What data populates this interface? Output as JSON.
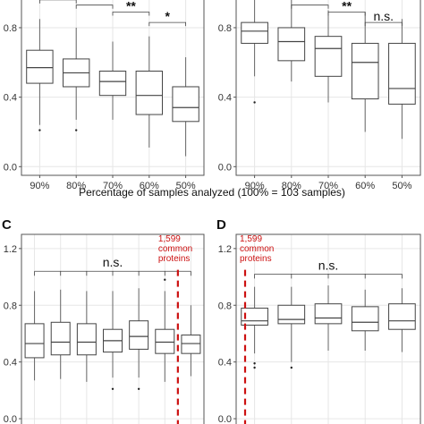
{
  "shared_xlabel": "Percentage of samples analyzed (100% = 103 samples)",
  "colors": {
    "box_stroke": "#444444",
    "whisker": "#666666",
    "grid": "#e6e6e6",
    "frame": "#555555",
    "annotation": "#cc1111"
  },
  "chart_data": [
    {
      "panel_id": "A",
      "letter": "",
      "type": "box",
      "categories": [
        "90%",
        "80%",
        "70%",
        "60%",
        "50%"
      ],
      "ylim": [
        -0.05,
        0.98
      ],
      "yticks": [
        "0.0",
        "0.4",
        "0.8"
      ],
      "grid": true,
      "boxes": [
        {
          "low": 0.24,
          "q1": 0.48,
          "median": 0.57,
          "q3": 0.67,
          "high": 0.85,
          "outliers": [
            0.21
          ]
        },
        {
          "low": 0.27,
          "q1": 0.46,
          "median": 0.54,
          "q3": 0.62,
          "high": 0.8,
          "outliers": [
            0.21
          ]
        },
        {
          "low": 0.27,
          "q1": 0.41,
          "median": 0.49,
          "q3": 0.55,
          "high": 0.72,
          "outliers": []
        },
        {
          "low": 0.11,
          "q1": 0.3,
          "median": 0.41,
          "q3": 0.55,
          "high": 0.75,
          "outliers": []
        },
        {
          "low": 0.06,
          "q1": 0.26,
          "median": 0.34,
          "q3": 0.46,
          "high": 0.63,
          "outliers": []
        }
      ],
      "comparisons": [
        {
          "from": 0,
          "to": 1,
          "y": 0.96,
          "label": "*"
        },
        {
          "from": 1,
          "to": 2,
          "y": 0.93,
          "label": "**"
        },
        {
          "from": 2,
          "to": 3,
          "y": 0.89,
          "label": "**"
        },
        {
          "from": 3,
          "to": 4,
          "y": 0.83,
          "label": "*"
        }
      ],
      "xticks_visible": true
    },
    {
      "panel_id": "B",
      "letter": "",
      "type": "box",
      "categories": [
        "90%",
        "80%",
        "70%",
        "60%",
        "50%"
      ],
      "ylim": [
        -0.05,
        0.98
      ],
      "yticks": [
        "0.0",
        "0.4",
        "0.8"
      ],
      "grid": true,
      "boxes": [
        {
          "low": 0.52,
          "q1": 0.71,
          "median": 0.78,
          "q3": 0.83,
          "high": 0.97,
          "outliers": [
            0.37
          ]
        },
        {
          "low": 0.49,
          "q1": 0.61,
          "median": 0.72,
          "q3": 0.8,
          "high": 0.96,
          "outliers": []
        },
        {
          "low": 0.37,
          "q1": 0.52,
          "median": 0.68,
          "q3": 0.75,
          "high": 0.9,
          "outliers": []
        },
        {
          "low": 0.2,
          "q1": 0.39,
          "median": 0.6,
          "q3": 0.71,
          "high": 0.89,
          "outliers": []
        },
        {
          "low": 0.16,
          "q1": 0.36,
          "median": 0.45,
          "q3": 0.71,
          "high": 0.85,
          "outliers": []
        }
      ],
      "comparisons": [
        {
          "from": 1,
          "to": 2,
          "y": 0.93,
          "label": "**"
        },
        {
          "from": 2,
          "to": 3,
          "y": 0.89,
          "label": "**"
        },
        {
          "from": 3,
          "to": 4,
          "y": 0.83,
          "label": "n.s."
        }
      ],
      "xticks_visible": true
    },
    {
      "panel_id": "C",
      "letter": "C",
      "type": "box",
      "categories": [
        "",
        "",
        "",
        "",
        "",
        "",
        ""
      ],
      "ylim": [
        -0.05,
        1.3
      ],
      "yticks": [
        "0.0",
        "0.4",
        "0.8",
        "1.2"
      ],
      "grid": true,
      "boxes": [
        {
          "low": 0.27,
          "q1": 0.43,
          "median": 0.53,
          "q3": 0.67,
          "high": 0.9,
          "outliers": []
        },
        {
          "low": 0.28,
          "q1": 0.45,
          "median": 0.54,
          "q3": 0.68,
          "high": 0.91,
          "outliers": []
        },
        {
          "low": 0.26,
          "q1": 0.45,
          "median": 0.54,
          "q3": 0.67,
          "high": 0.9,
          "outliers": []
        },
        {
          "low": 0.29,
          "q1": 0.47,
          "median": 0.55,
          "q3": 0.63,
          "high": 0.9,
          "outliers": [
            0.21
          ]
        },
        {
          "low": 0.29,
          "q1": 0.49,
          "median": 0.58,
          "q3": 0.69,
          "high": 0.92,
          "outliers": [
            0.21
          ]
        },
        {
          "low": 0.26,
          "q1": 0.46,
          "median": 0.54,
          "q3": 0.63,
          "high": 0.9,
          "outliers": [
            0.98
          ]
        },
        {
          "low": 0.3,
          "q1": 0.46,
          "median": 0.53,
          "q3": 0.59,
          "high": 0.8,
          "outliers": []
        }
      ],
      "bracket": {
        "from": 0,
        "to": 6,
        "y": 1.04,
        "label": "n.s."
      },
      "annotation": {
        "lines": [
          "1,599",
          "common",
          "proteins"
        ],
        "after_index": 5
      },
      "xticks_visible": false
    },
    {
      "panel_id": "D",
      "letter": "D",
      "type": "box",
      "categories": [
        "",
        "",
        "",
        "",
        ""
      ],
      "ylim": [
        -0.05,
        1.3
      ],
      "yticks": [
        "0.0",
        "0.4",
        "0.8",
        "1.2"
      ],
      "grid": true,
      "boxes": [
        {
          "low": 0.46,
          "q1": 0.66,
          "median": 0.69,
          "q3": 0.78,
          "high": 0.93,
          "outliers": [
            0.39,
            0.36
          ]
        },
        {
          "low": 0.4,
          "q1": 0.67,
          "median": 0.7,
          "q3": 0.8,
          "high": 0.93,
          "outliers": [
            0.36
          ]
        },
        {
          "low": 0.48,
          "q1": 0.67,
          "median": 0.71,
          "q3": 0.81,
          "high": 0.94,
          "outliers": []
        },
        {
          "low": 0.48,
          "q1": 0.62,
          "median": 0.68,
          "q3": 0.79,
          "high": 0.91,
          "outliers": []
        },
        {
          "low": 0.47,
          "q1": 0.63,
          "median": 0.69,
          "q3": 0.81,
          "high": 0.92,
          "outliers": []
        }
      ],
      "bracket": {
        "from": 0,
        "to": 4,
        "y": 1.02,
        "label": "n.s."
      },
      "annotation": {
        "lines": [
          "1,599",
          "common",
          "proteins"
        ],
        "after_index": -1
      },
      "xticks_visible": false
    }
  ]
}
